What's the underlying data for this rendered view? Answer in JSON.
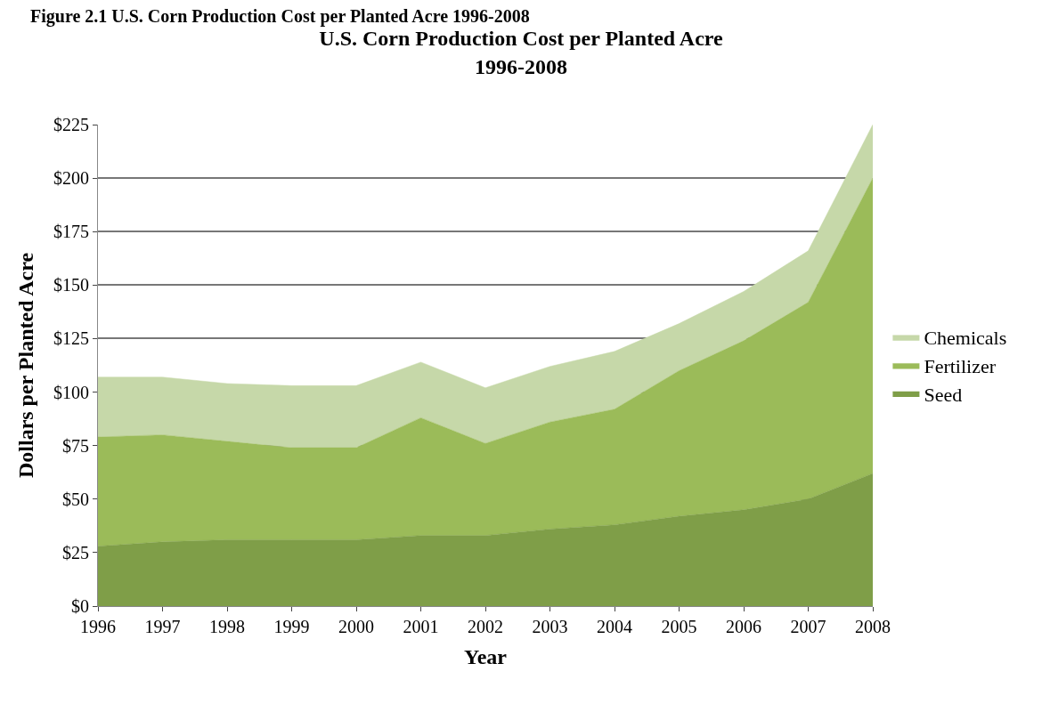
{
  "chart_data": {
    "type": "area",
    "title": "U.S. Corn Production Cost per Planted Acre\n1996-2008",
    "xlabel": "Year",
    "ylabel": "Dollars per Planted Acre",
    "annotations": [
      "Figure 2.1 U.S. Corn Production Cost per Planted Acre 1996-2008"
    ],
    "categories": [
      "1996",
      "1997",
      "1998",
      "1999",
      "2000",
      "2001",
      "2002",
      "2003",
      "2004",
      "2005",
      "2006",
      "2007",
      "2008"
    ],
    "stacked": true,
    "series": [
      {
        "name": "Seed",
        "color": "#7f9e48",
        "values": [
          28,
          30,
          31,
          31,
          31,
          33,
          33,
          36,
          38,
          42,
          45,
          50,
          62
        ]
      },
      {
        "name": "Fertilizer",
        "color": "#9bbb59",
        "values": [
          51,
          50,
          46,
          43,
          43,
          55,
          43,
          50,
          54,
          68,
          79,
          92,
          138
        ]
      },
      {
        "name": "Chemicals",
        "color": "#c6d8a9",
        "values": [
          28,
          27,
          27,
          29,
          29,
          26,
          26,
          26,
          27,
          22,
          23,
          24,
          25
        ]
      }
    ],
    "ylim": [
      0,
      225
    ],
    "yticks": [
      {
        "value": 0,
        "label": "$0"
      },
      {
        "value": 25,
        "label": "$25"
      },
      {
        "value": 50,
        "label": "$50"
      },
      {
        "value": 75,
        "label": "$75"
      },
      {
        "value": 100,
        "label": "$100"
      },
      {
        "value": 125,
        "label": "$125"
      },
      {
        "value": 150,
        "label": "$150"
      },
      {
        "value": 175,
        "label": "$175"
      },
      {
        "value": 200,
        "label": "$200"
      },
      {
        "value": 225,
        "label": "$225"
      }
    ],
    "grid": "y",
    "legend": "right"
  }
}
